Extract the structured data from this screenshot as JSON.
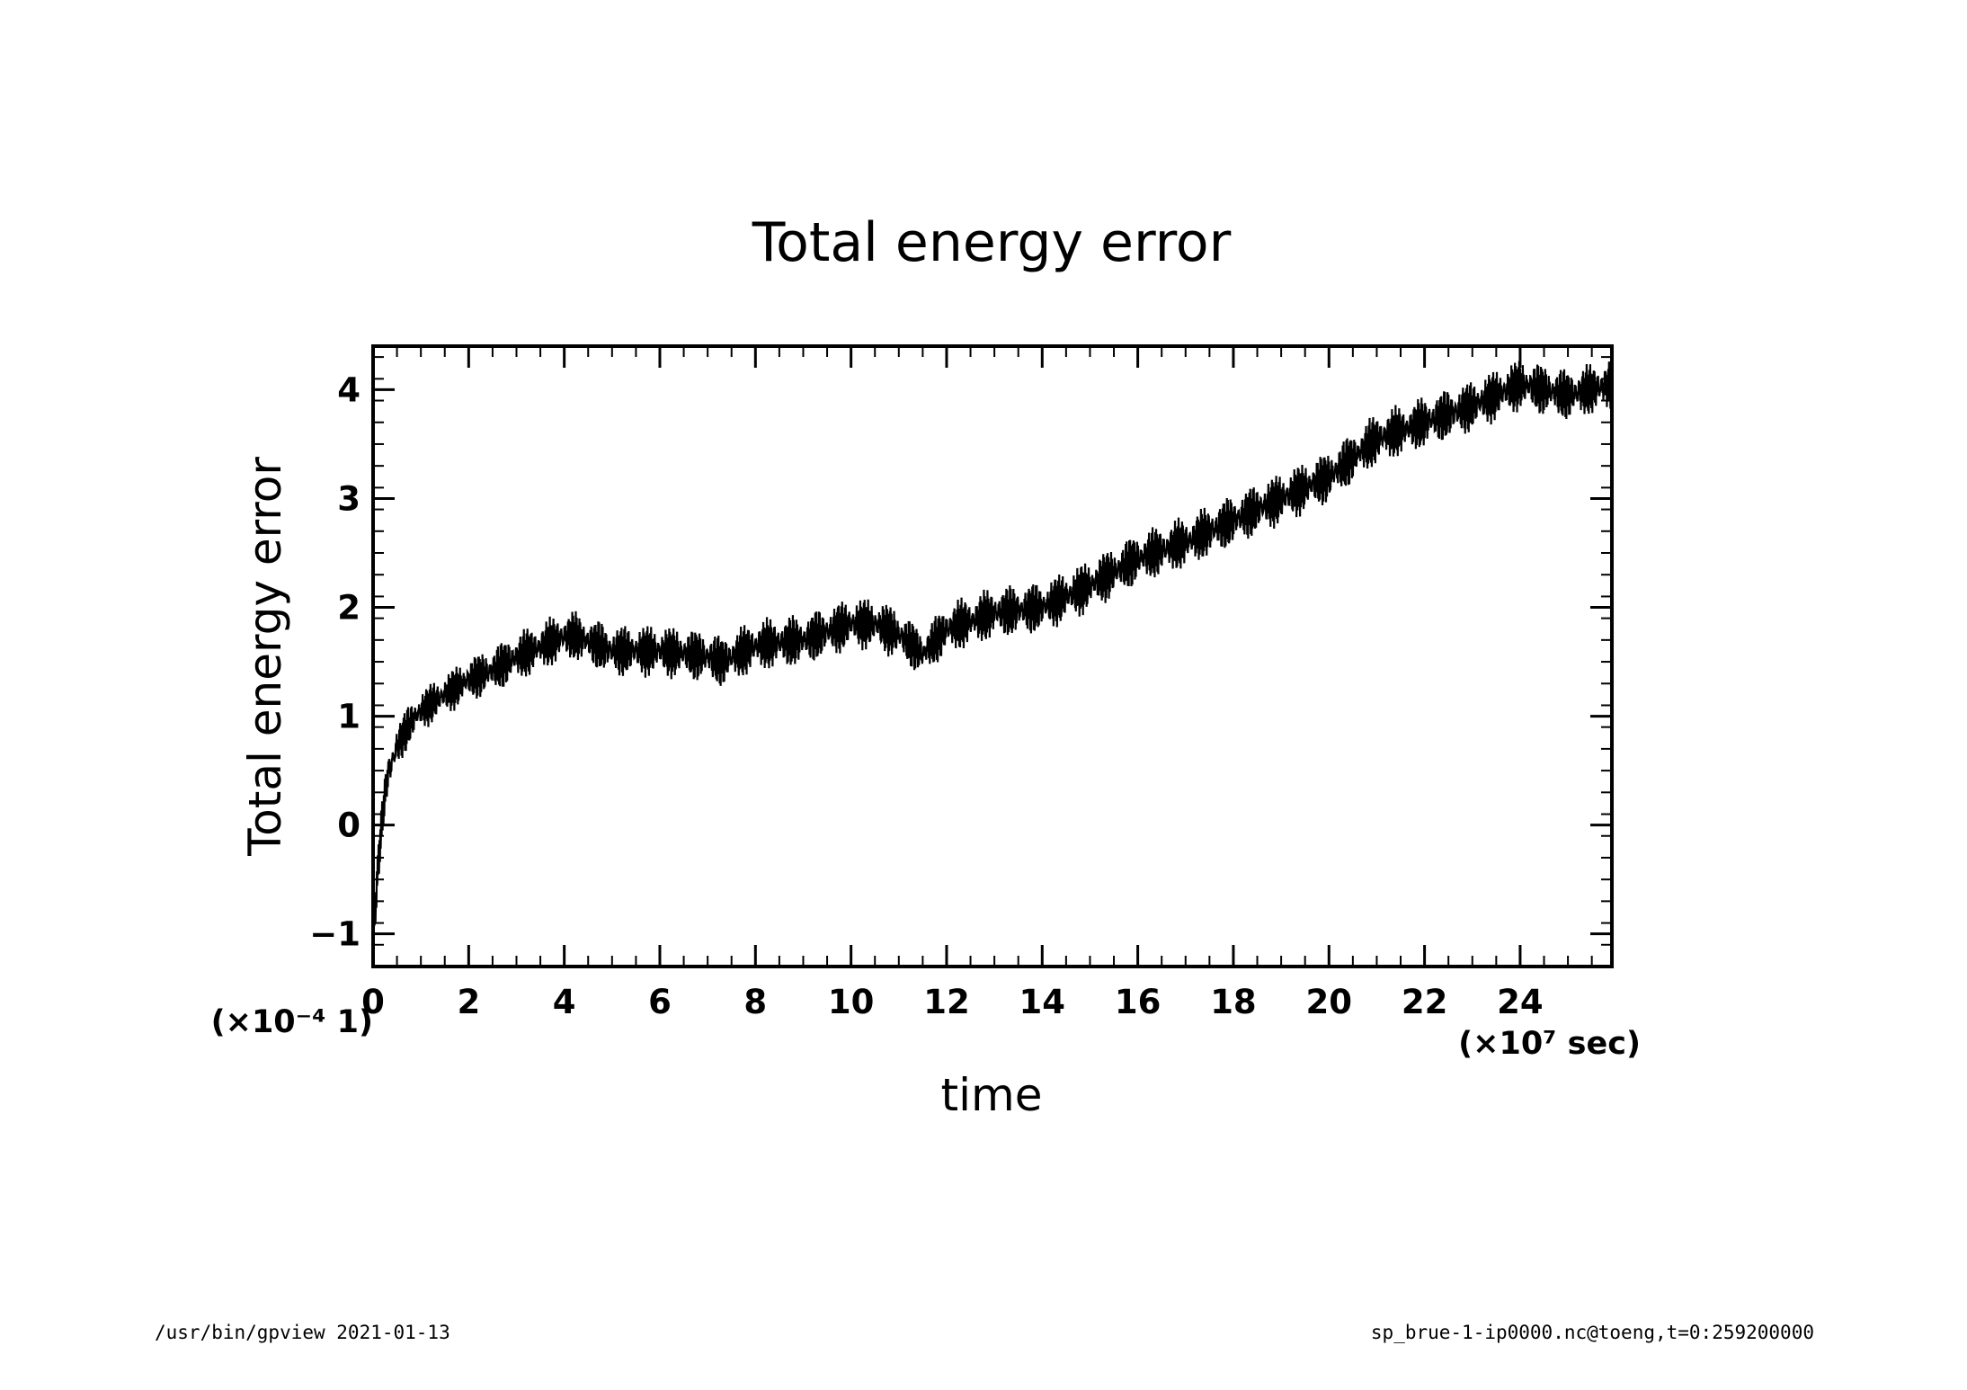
{
  "chart_data": {
    "type": "line",
    "title": "Total energy error",
    "xlabel": "time",
    "ylabel": "Total energy error",
    "x_scale_label": "(×10⁷ sec)",
    "y_scale_label": "(×10⁻⁴ 1)",
    "xlim": [
      0,
      25.92
    ],
    "ylim": [
      -1.3,
      4.4
    ],
    "x_ticks": [
      0,
      2,
      4,
      6,
      8,
      10,
      12,
      14,
      16,
      18,
      20,
      22,
      24
    ],
    "y_ticks": [
      -1,
      0,
      1,
      2,
      3,
      4
    ],
    "x_tick_labels": [
      "0",
      "2",
      "4",
      "6",
      "8",
      "10",
      "12",
      "14",
      "16",
      "18",
      "20",
      "22",
      "24"
    ],
    "y_tick_labels": [
      "−1",
      "0",
      "1",
      "2",
      "3",
      "4"
    ],
    "grid": false,
    "color": "#000000",
    "series": [
      {
        "x": [
          0,
          0.1,
          0.2,
          0.3,
          0.5,
          0.8,
          1,
          1.5,
          2,
          2.5,
          3,
          3.5,
          4,
          4.2,
          4.5,
          5,
          6,
          7,
          7.3,
          8,
          9,
          10,
          10.5,
          11,
          11.5,
          12,
          13,
          14,
          15,
          16,
          17,
          18,
          19,
          20,
          21,
          22,
          23,
          24,
          24.5,
          25,
          25.92
        ],
        "y_center": [
          -1.1,
          -0.4,
          0.1,
          0.45,
          0.75,
          0.95,
          1.05,
          1.2,
          1.35,
          1.45,
          1.55,
          1.65,
          1.75,
          1.75,
          1.7,
          1.6,
          1.6,
          1.55,
          1.5,
          1.65,
          1.7,
          1.85,
          1.85,
          1.75,
          1.55,
          1.8,
          1.95,
          2.0,
          2.2,
          2.45,
          2.6,
          2.8,
          3.0,
          3.2,
          3.55,
          3.7,
          3.85,
          4.05,
          4.0,
          3.95,
          4.05
        ],
        "y_low": [
          -1.3,
          -0.6,
          -0.1,
          0.25,
          0.5,
          0.75,
          0.85,
          1.0,
          1.12,
          1.2,
          1.3,
          1.4,
          1.5,
          1.5,
          1.45,
          1.35,
          1.35,
          1.3,
          1.25,
          1.4,
          1.45,
          1.6,
          1.6,
          1.5,
          1.35,
          1.55,
          1.7,
          1.75,
          1.95,
          2.2,
          2.35,
          2.55,
          2.75,
          2.95,
          3.3,
          3.45,
          3.6,
          3.8,
          3.75,
          3.7,
          3.8
        ],
        "y_high": [
          -0.9,
          -0.2,
          0.3,
          0.65,
          0.95,
          1.15,
          1.25,
          1.4,
          1.55,
          1.65,
          1.78,
          1.88,
          1.97,
          1.98,
          1.93,
          1.85,
          1.85,
          1.8,
          1.75,
          1.9,
          1.95,
          2.1,
          2.1,
          2.0,
          1.8,
          2.05,
          2.2,
          2.25,
          2.45,
          2.7,
          2.85,
          3.05,
          3.25,
          3.45,
          3.8,
          3.95,
          4.1,
          4.3,
          4.25,
          4.2,
          4.3
        ]
      }
    ]
  },
  "footer": {
    "left": "/usr/bin/gpview   2021-01-13",
    "right": "sp_brue-1-ip0000.nc@toeng,t=0:259200000"
  }
}
